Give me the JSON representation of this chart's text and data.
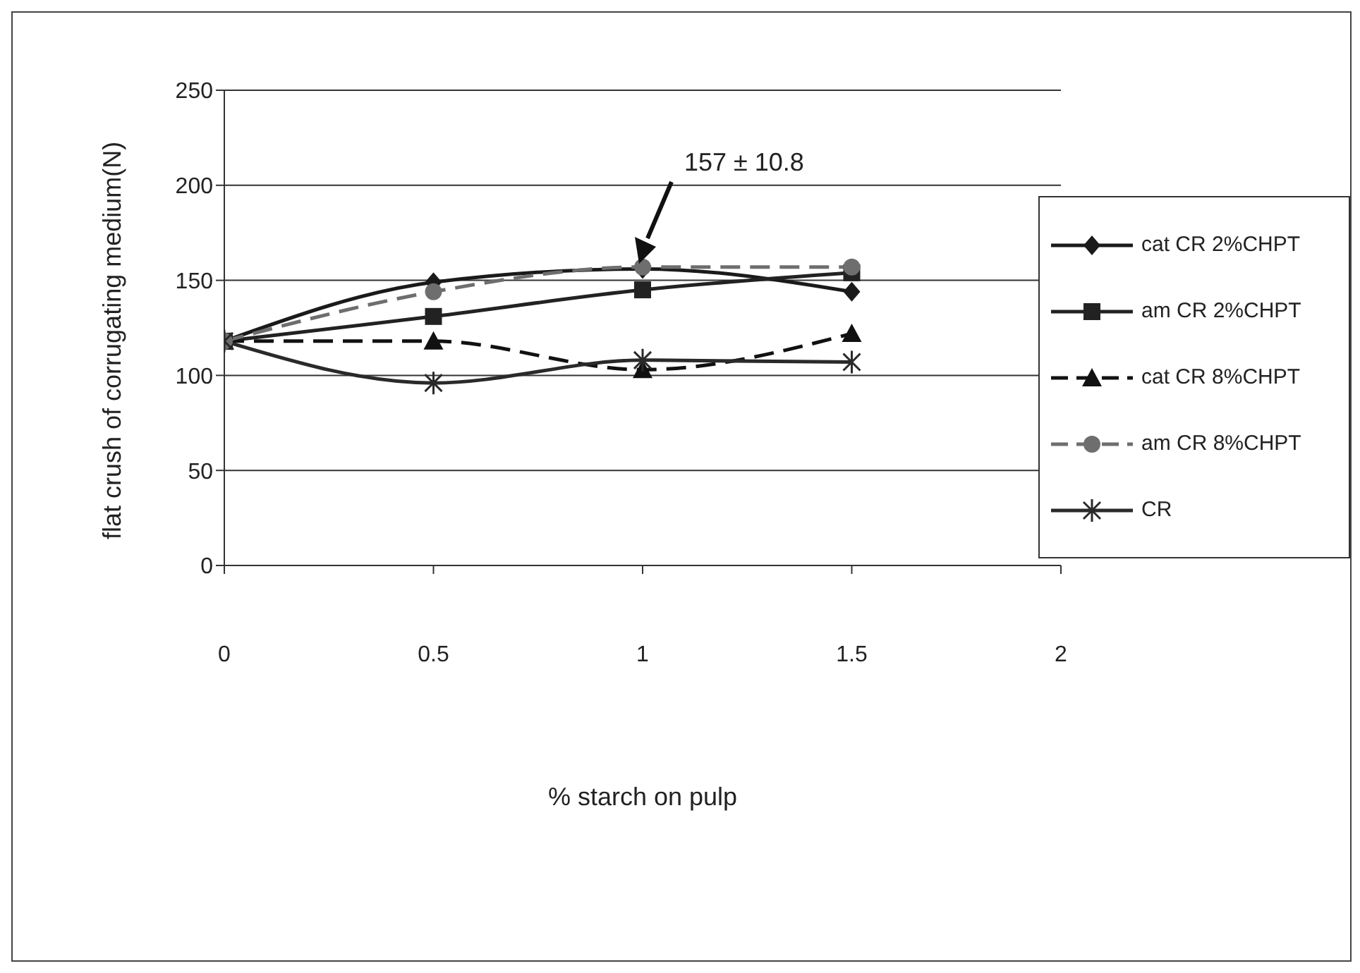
{
  "chart_data": {
    "type": "line",
    "xlabel": "% starch on pulp",
    "ylabel": "flat crush of corrugating medium(N)",
    "x": [
      0,
      0.5,
      1,
      1.5
    ],
    "series": [
      {
        "name": "cat CR 2%CHPT",
        "color": "#1a1a1a",
        "marker": "diamond",
        "line_style": "solid",
        "values": [
          118,
          149,
          156,
          144
        ]
      },
      {
        "name": "am CR 2%CHPT",
        "color": "#222222",
        "marker": "square",
        "line_style": "solid",
        "values": [
          118,
          131,
          145,
          154
        ]
      },
      {
        "name": "cat CR 8%CHPT",
        "color": "#111111",
        "marker": "triangle",
        "line_style": "dashed",
        "values": [
          118,
          118,
          103,
          122
        ]
      },
      {
        "name": "am CR 8%CHPT",
        "color": "#6e6e6e",
        "marker": "circle",
        "line_style": "dashed",
        "values": [
          118,
          144,
          157,
          157
        ]
      },
      {
        "name": "CR",
        "color": "#2a2a2a",
        "marker": "cross",
        "line_style": "solid",
        "values": [
          118,
          96,
          108,
          107
        ]
      }
    ],
    "xlim": [
      0,
      2
    ],
    "xticks": [
      0,
      0.5,
      1,
      1.5,
      2
    ],
    "ylim": [
      0,
      250
    ],
    "yticks": [
      0,
      50,
      100,
      150,
      200,
      250
    ],
    "grid": "y",
    "legend": "right",
    "annotations": [
      "157 ± 10.8"
    ]
  }
}
